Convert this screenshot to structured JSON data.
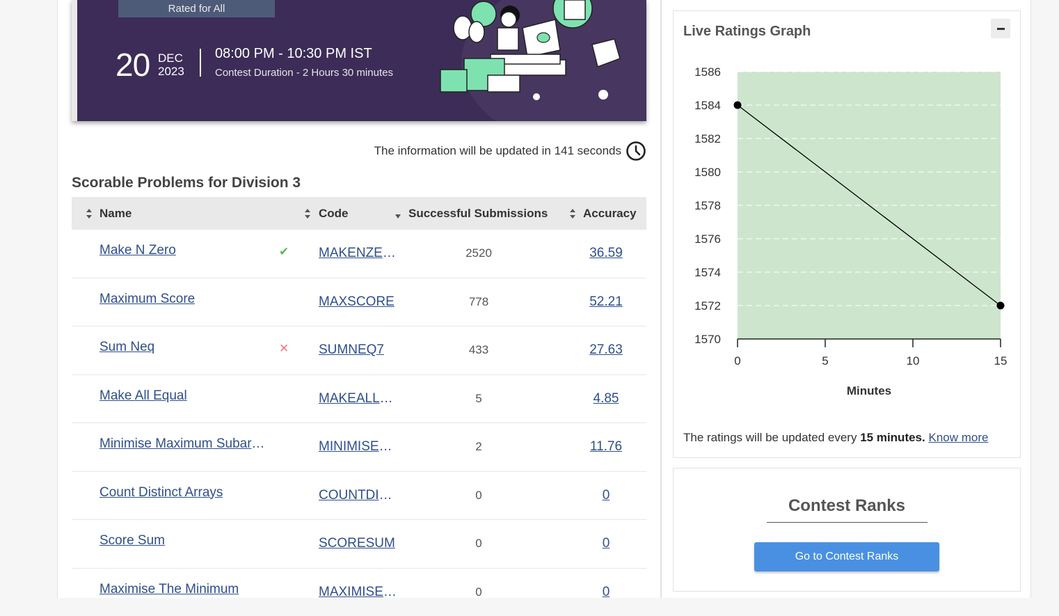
{
  "banner": {
    "rated_label": "Rated for All",
    "day": "20",
    "month": "DEC",
    "year": "2023",
    "time_range": "08:00 PM - 10:30 PM IST",
    "duration": "Contest Duration - 2  Hours 30 minutes"
  },
  "update_info": {
    "prefix": "The information will be updated in 141 seconds"
  },
  "problems": {
    "title": "Scorable Problems for Division 3",
    "columns": {
      "name": "Name",
      "code": "Code",
      "submissions": "Successful Submissions",
      "accuracy": "Accuracy"
    },
    "rows": [
      {
        "name": "Make N Zero",
        "status": "✔",
        "code": "MAKENZERO",
        "submissions": "2520",
        "accuracy": "36.59"
      },
      {
        "name": "Maximum Score",
        "status": "",
        "code": "MAXSCORE",
        "submissions": "778",
        "accuracy": "52.21"
      },
      {
        "name": "Sum Neq",
        "status": "✕",
        "code": "SUMNEQ7",
        "submissions": "433",
        "accuracy": "27.63"
      },
      {
        "name": "Make All Equal",
        "status": "",
        "code": "MAKEALLEQUAL",
        "submissions": "5",
        "accuracy": "4.85"
      },
      {
        "name": "Minimise Maximum Subarray",
        "status": "",
        "code": "MINIMISEMAX",
        "submissions": "2",
        "accuracy": "11.76"
      },
      {
        "name": "Count Distinct Arrays",
        "status": "",
        "code": "COUNTDISTINCT",
        "submissions": "0",
        "accuracy": "0"
      },
      {
        "name": "Score Sum",
        "status": "",
        "code": "SCORESUM",
        "submissions": "0",
        "accuracy": "0"
      },
      {
        "name": "Maximise The Minimum",
        "status": "",
        "code": "MAXIMISEMIN",
        "submissions": "0",
        "accuracy": "0"
      }
    ]
  },
  "graph": {
    "title": "Live Ratings Graph",
    "collapse_icon": "minus-icon",
    "note_prefix": "The ratings will be updated every ",
    "note_bold": "15 minutes.",
    "know_more": "Know more"
  },
  "chart_data": {
    "type": "line",
    "title": "Live Ratings Graph",
    "xlabel": "Minutes",
    "ylabel": "",
    "x": [
      0,
      15
    ],
    "series": [
      {
        "values": [
          1584,
          1572
        ]
      }
    ],
    "xlim": [
      0,
      15
    ],
    "ylim": [
      1570,
      1586
    ],
    "xticks": [
      0,
      5,
      10,
      15
    ],
    "yticks": [
      1570,
      1572,
      1574,
      1576,
      1578,
      1580,
      1582,
      1584,
      1586
    ],
    "grid": true,
    "fill_color": "#cde5cd",
    "line_color": "#000000"
  },
  "ranks": {
    "title": "Contest Ranks",
    "button": "Go to Contest Ranks"
  },
  "colors": {
    "banner": "#3c2c57",
    "link": "#2e4f8c",
    "accent_button": "#4a90e2",
    "success": "#5cb85c",
    "fail": "#e57d7d"
  }
}
